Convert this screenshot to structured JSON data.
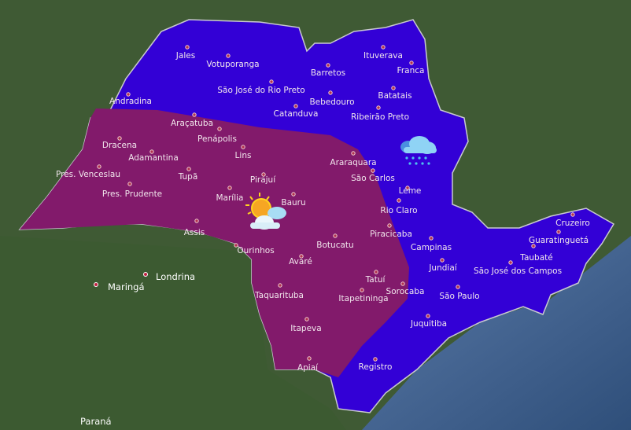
{
  "map": {
    "colors": {
      "rain_region": "#3300d6",
      "sun_region": "#821a6b",
      "land": "#3f5a34",
      "ocean": "#46618a",
      "city_dot": "#f0d0d0"
    },
    "regions": [
      {
        "name": "rain",
        "icon": "rain-cloud-icon"
      },
      {
        "name": "partly-sunny",
        "icon": "sun-behind-cloud-icon"
      }
    ],
    "cities": [
      "Jales",
      "Votuporanga",
      "Ituverava",
      "Franca",
      "Barretos",
      "São José do Rio Preto",
      "Bebedouro",
      "Batatais",
      "Andradina",
      "Catanduva",
      "Ribeirão Preto",
      "Araçatuba",
      "Penápolis",
      "Dracena",
      "Adamantina",
      "Lins",
      "Araraquara",
      "São Carlos",
      "Pres. Venceslau",
      "Tupã",
      "Pirajuí",
      "Leme",
      "Pres. Prudente",
      "Marília",
      "Bauru",
      "Rio Claro",
      "Assis",
      "Ourinhos",
      "Botucatu",
      "Piracicaba",
      "Campinas",
      "Avaré",
      "Jundiaí",
      "Taubaté",
      "São José dos Campos",
      "Guaratinguetá",
      "Cruzeiro",
      "Tatuí",
      "Sorocaba",
      "Itapetininga",
      "São Paulo",
      "Taquarituba",
      "Juquitiba",
      "Itapeva",
      "Apiaí",
      "Registro"
    ],
    "external_places": [
      "Londrina",
      "Maringá",
      "Paraná"
    ]
  }
}
